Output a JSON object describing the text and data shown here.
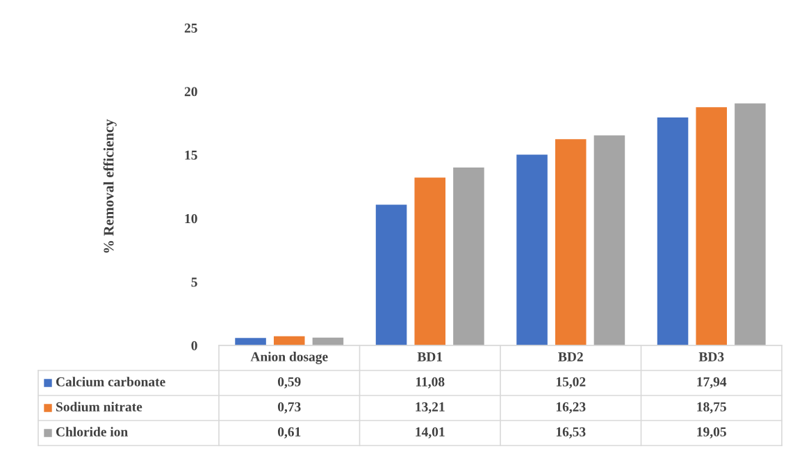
{
  "chart_data": {
    "type": "bar",
    "ylabel": "% Removal efficiency",
    "categories": [
      "Anion dosage",
      "BD1",
      "BD2",
      "BD3"
    ],
    "series": [
      {
        "name": "Calcium carbonate",
        "color": "#4472c4",
        "values": [
          0.59,
          11.08,
          15.02,
          17.94
        ],
        "value_labels": [
          "0,59",
          "11,08",
          "15,02",
          "17,94"
        ]
      },
      {
        "name": "Sodium nitrate",
        "color": "#ed7d31",
        "values": [
          0.73,
          13.21,
          16.23,
          18.75
        ],
        "value_labels": [
          "0,73",
          "13,21",
          "16,23",
          "18,75"
        ]
      },
      {
        "name": "Chloride ion",
        "color": "#a5a5a5",
        "values": [
          0.61,
          14.01,
          16.53,
          19.05
        ],
        "value_labels": [
          "0,61",
          "14,01",
          "16,53",
          "19,05"
        ]
      }
    ],
    "ylim": [
      0,
      25
    ],
    "yticks": [
      0,
      5,
      10,
      15,
      20,
      25
    ],
    "grid": false,
    "legend": "bottom",
    "data_labels": true
  }
}
